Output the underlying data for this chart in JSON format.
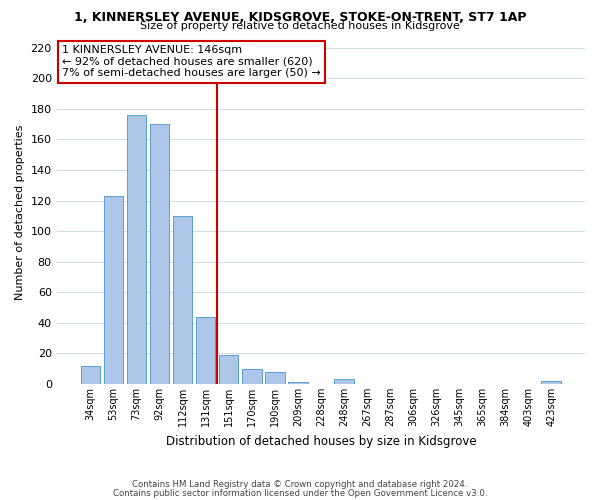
{
  "title": "1, KINNERSLEY AVENUE, KIDSGROVE, STOKE-ON-TRENT, ST7 1AP",
  "subtitle": "Size of property relative to detached houses in Kidsgrove",
  "xlabel": "Distribution of detached houses by size in Kidsgrove",
  "ylabel": "Number of detached properties",
  "bar_labels": [
    "34sqm",
    "53sqm",
    "73sqm",
    "92sqm",
    "112sqm",
    "131sqm",
    "151sqm",
    "170sqm",
    "190sqm",
    "209sqm",
    "228sqm",
    "248sqm",
    "267sqm",
    "287sqm",
    "306sqm",
    "326sqm",
    "345sqm",
    "365sqm",
    "384sqm",
    "403sqm",
    "423sqm"
  ],
  "bar_values": [
    12,
    123,
    176,
    170,
    110,
    44,
    19,
    10,
    8,
    1,
    0,
    3,
    0,
    0,
    0,
    0,
    0,
    0,
    0,
    0,
    2
  ],
  "bar_color": "#aec6e8",
  "bar_edge_color": "#5a9fd4",
  "vline_x": 5.5,
  "vline_color": "#cc0000",
  "ylim": [
    0,
    225
  ],
  "yticks": [
    0,
    20,
    40,
    60,
    80,
    100,
    120,
    140,
    160,
    180,
    200,
    220
  ],
  "annotation_title": "1 KINNERSLEY AVENUE: 146sqm",
  "annotation_line1": "← 92% of detached houses are smaller (620)",
  "annotation_line2": "7% of semi-detached houses are larger (50) →",
  "annotation_box_color": "#ffffff",
  "annotation_box_edge": "#cc0000",
  "footnote1": "Contains HM Land Registry data © Crown copyright and database right 2024.",
  "footnote2": "Contains public sector information licensed under the Open Government Licence v3.0.",
  "bg_color": "#ffffff",
  "grid_color": "#d0dce8"
}
